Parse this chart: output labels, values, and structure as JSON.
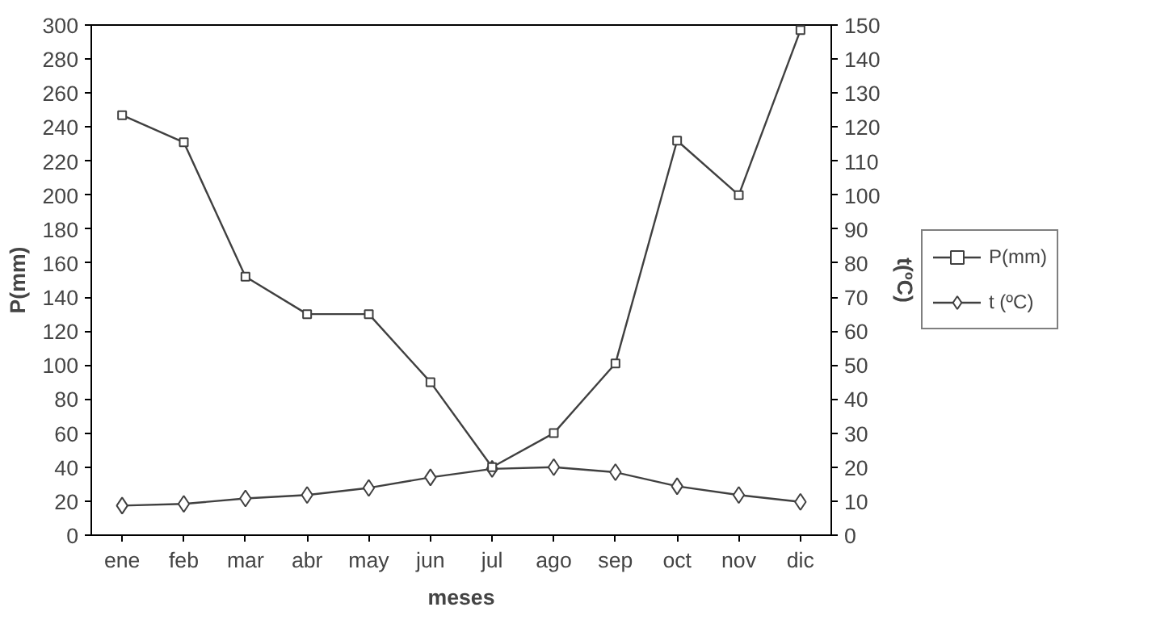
{
  "chart_data": {
    "type": "line",
    "xlabel": "meses",
    "ylabel": "P(mm)",
    "y2label": "t(ºC)",
    "categories": [
      "ene",
      "feb",
      "mar",
      "abr",
      "may",
      "jun",
      "jul",
      "ago",
      "sep",
      "oct",
      "nov",
      "dic"
    ],
    "series": [
      {
        "name": "P(mm)",
        "color": "#404040",
        "marker": "square",
        "values": [
          247,
          231,
          152,
          130,
          130,
          90,
          40,
          60,
          101,
          232,
          200,
          297
        ]
      },
      {
        "name": "t (ºC)",
        "color": "#404040",
        "marker": "diamond",
        "axis": "y2",
        "values": [
          8.7,
          9.2,
          10.8,
          11.8,
          13.9,
          17,
          19.5,
          20,
          18.5,
          14.4,
          11.8,
          9.8
        ]
      }
    ],
    "ylim": [
      0,
      300
    ],
    "yticks": [
      0,
      20,
      40,
      60,
      80,
      100,
      120,
      140,
      160,
      180,
      200,
      220,
      240,
      260,
      280,
      300
    ],
    "y2lim": [
      0,
      150
    ],
    "y2ticks": [
      0,
      10,
      20,
      30,
      40,
      50,
      60,
      70,
      80,
      90,
      100,
      110,
      120,
      130,
      140,
      150
    ],
    "grid": false,
    "legend": "right",
    "line_style": "solid"
  }
}
